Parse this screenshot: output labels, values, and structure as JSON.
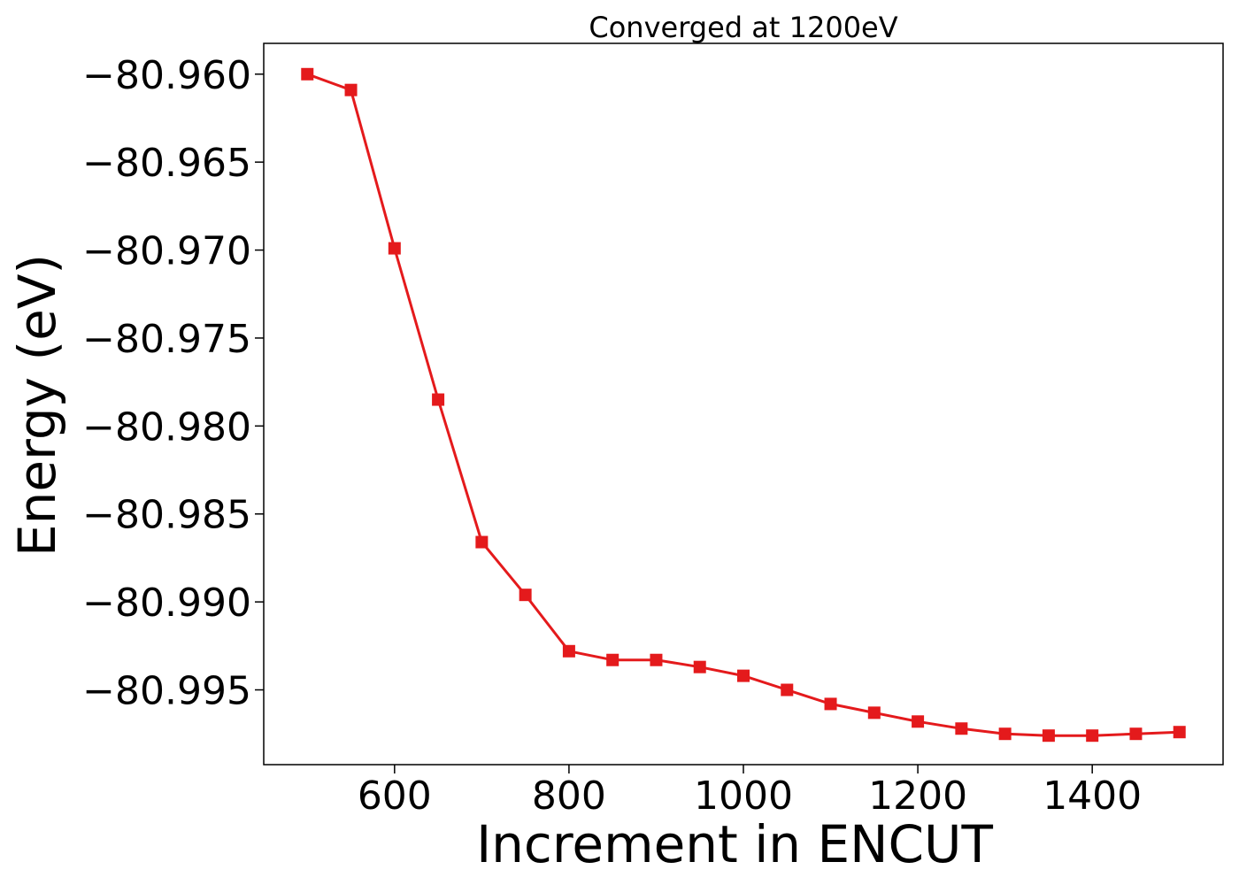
{
  "chart_data": {
    "type": "line",
    "title": "Converged at 1200eV",
    "xlabel": "Increment in ENCUT",
    "ylabel": "Energy (eV)",
    "xlim": [
      450,
      1550
    ],
    "ylim": [
      -80.99925,
      -80.95825
    ],
    "x_ticks": [
      600,
      800,
      1000,
      1200,
      1400
    ],
    "x_tick_labels": [
      "600",
      "800",
      "1000",
      "1200",
      "1400"
    ],
    "y_ticks": [
      -80.96,
      -80.965,
      -80.97,
      -80.975,
      -80.98,
      -80.985,
      -80.99,
      -80.995
    ],
    "y_tick_labels": [
      "−80.960",
      "−80.965",
      "−80.970",
      "−80.975",
      "−80.980",
      "−80.985",
      "−80.990",
      "−80.995"
    ],
    "grid": false,
    "series": [
      {
        "color": "#e41a1c",
        "marker": "square",
        "x": [
          500,
          550,
          600,
          650,
          700,
          750,
          800,
          850,
          900,
          950,
          1000,
          1050,
          1100,
          1150,
          1200,
          1250,
          1300,
          1350,
          1400,
          1450,
          1500
        ],
        "y": [
          -80.96,
          -80.9609,
          -80.9699,
          -80.9785,
          -80.9866,
          -80.9896,
          -80.9928,
          -80.9933,
          -80.9933,
          -80.9937,
          -80.9942,
          -80.995,
          -80.9958,
          -80.9963,
          -80.9968,
          -80.9972,
          -80.9975,
          -80.9976,
          -80.9976,
          -80.9975,
          -80.9974
        ]
      }
    ]
  }
}
